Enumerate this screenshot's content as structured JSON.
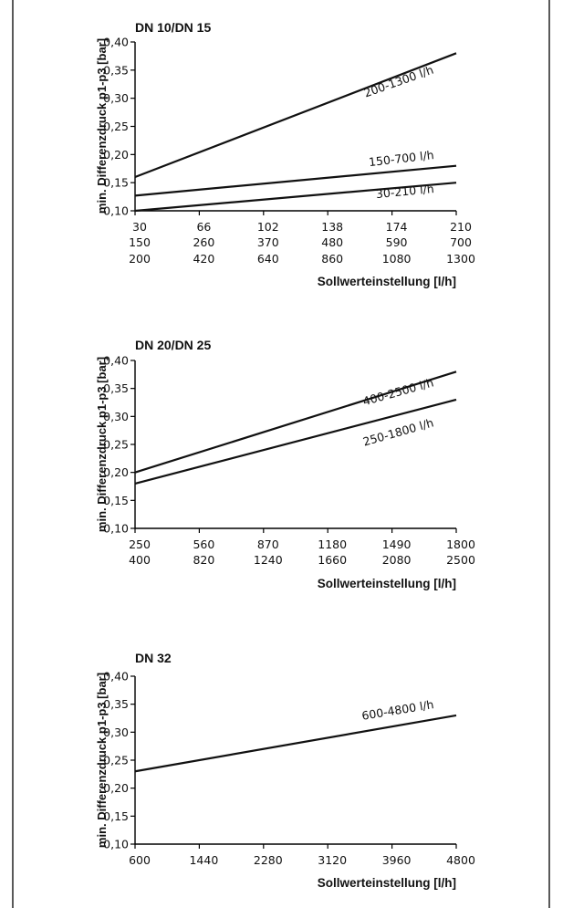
{
  "chart_data": [
    {
      "type": "line",
      "title": "DN 10/DN 15",
      "ylabel": "min. Differenzdruck p1-p3 [bar]",
      "xlabel": "Sollwerteinstellung [l/h]",
      "ylim": [
        0.1,
        0.4
      ],
      "y_ticks": [
        "0,10",
        "0,15",
        "0,20",
        "0,25",
        "0,30",
        "0,35",
        "0,40"
      ],
      "x_tick_rows": [
        [
          "30",
          "66",
          "102",
          "138",
          "174",
          "210"
        ],
        [
          "150",
          "260",
          "370",
          "480",
          "590",
          "700"
        ],
        [
          "200",
          "420",
          "640",
          "860",
          "1080",
          "1300"
        ]
      ],
      "series": [
        {
          "name": "200-1300 l/h",
          "x": [
            200,
            1300
          ],
          "y": [
            0.16,
            0.38
          ]
        },
        {
          "name": "150-700 l/h",
          "x": [
            150,
            700
          ],
          "y": [
            0.127,
            0.18
          ]
        },
        {
          "name": "30-210 l/h",
          "x": [
            30,
            210
          ],
          "y": [
            0.1,
            0.15
          ]
        }
      ]
    },
    {
      "type": "line",
      "title": "DN 20/DN 25",
      "ylabel": "min. Differenzdruck p1-p3 [bar]",
      "xlabel": "Sollwerteinstellung [l/h]",
      "ylim": [
        0.1,
        0.4
      ],
      "y_ticks": [
        "0,10",
        "0,15",
        "0,20",
        "0,25",
        "0,30",
        "0,35",
        "0,40"
      ],
      "x_tick_rows": [
        [
          "250",
          "560",
          "870",
          "1180",
          "1490",
          "1800"
        ],
        [
          "400",
          "820",
          "1240",
          "1660",
          "2080",
          "2500"
        ]
      ],
      "series": [
        {
          "name": "400-2500 l/h",
          "x": [
            400,
            2500
          ],
          "y": [
            0.2,
            0.38
          ]
        },
        {
          "name": "250-1800 l/h",
          "x": [
            250,
            1800
          ],
          "y": [
            0.18,
            0.33
          ]
        }
      ]
    },
    {
      "type": "line",
      "title": "DN 32",
      "ylabel": "min. Differenzdruck p1-p3 [bar]",
      "xlabel": "Sollwerteinstellung [l/h]",
      "ylim": [
        0.1,
        0.4
      ],
      "y_ticks": [
        "0,10",
        "0,15",
        "0,20",
        "0,25",
        "0,30",
        "0,35",
        "0,40"
      ],
      "x_tick_rows": [
        [
          "600",
          "1440",
          "2280",
          "3120",
          "3960",
          "4800"
        ]
      ],
      "series": [
        {
          "name": "600-4800 l/h",
          "x": [
            600,
            4800
          ],
          "y": [
            0.23,
            0.33
          ]
        }
      ]
    }
  ]
}
